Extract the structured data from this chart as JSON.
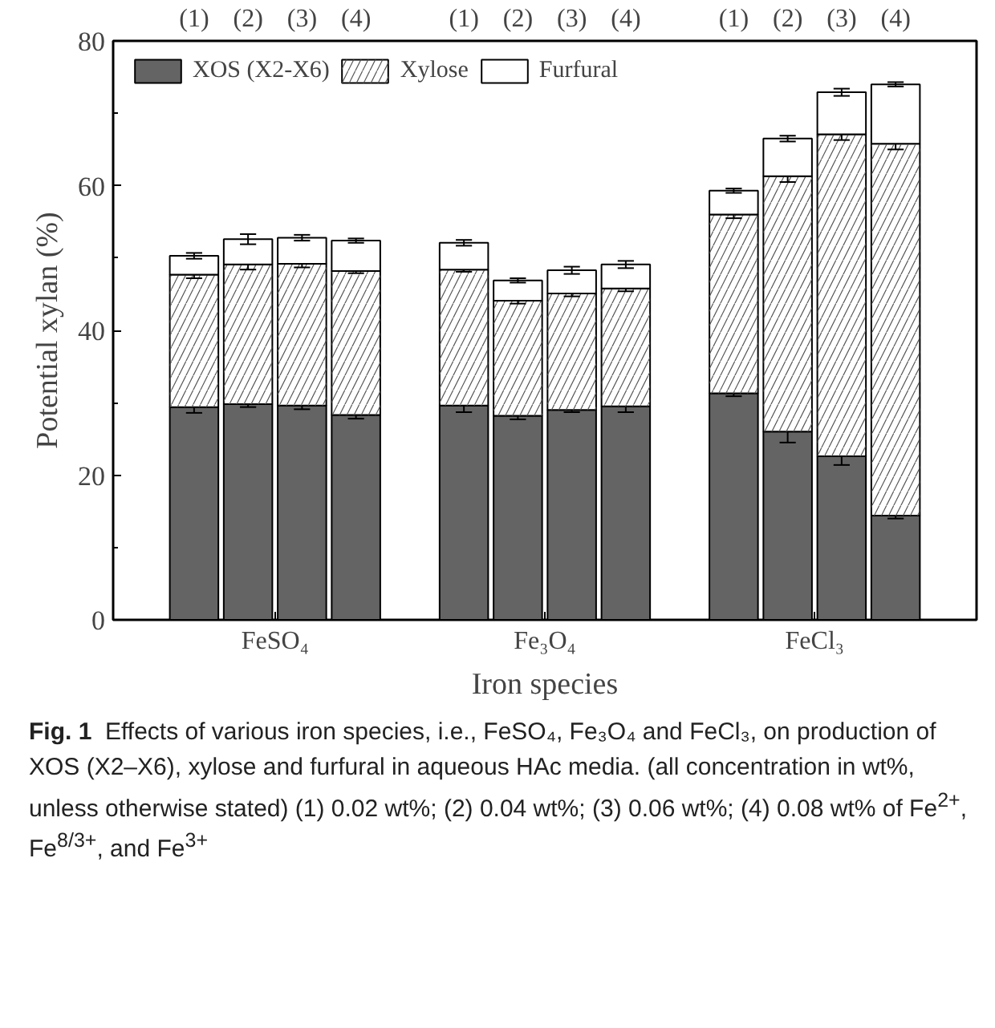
{
  "chart_data": {
    "type": "bar",
    "stacked": true,
    "categories": [
      "(1)",
      "(2)",
      "(3)",
      "(4)",
      "(1)",
      "(2)",
      "(3)",
      "(4)",
      "(1)",
      "(2)",
      "(3)",
      "(4)"
    ],
    "xlabel": "Iron species",
    "ylabel": "Potential xylan (%)",
    "ylim": [
      0,
      80
    ],
    "yticks": [
      0,
      20,
      40,
      60,
      80
    ],
    "series": [
      {
        "name": "XOS (X2-X6)",
        "color": "#646464",
        "values": [
          29.4,
          29.8,
          29.6,
          28.3,
          29.6,
          28.2,
          29.0,
          29.5,
          31.3,
          26.0,
          22.6,
          14.4
        ],
        "errors": [
          0.8,
          0.4,
          0.5,
          0.5,
          0.9,
          0.5,
          0.3,
          0.8,
          0.4,
          1.5,
          1.2,
          0.4
        ]
      },
      {
        "name": "Xylose",
        "color": "#ffffff",
        "values": [
          18.3,
          19.3,
          19.6,
          19.9,
          18.8,
          15.9,
          16.1,
          16.3,
          24.7,
          35.3,
          44.5,
          51.4
        ],
        "errors": [
          0.5,
          0.7,
          0.5,
          0.3,
          0.3,
          0.4,
          0.4,
          0.4,
          0.5,
          0.8,
          0.8,
          0.8
        ]
      },
      {
        "name": "Furfural",
        "color": "#ffffff",
        "values": [
          2.6,
          3.5,
          3.6,
          4.2,
          3.7,
          2.8,
          3.2,
          3.3,
          3.3,
          5.2,
          5.8,
          8.2
        ],
        "errors": [
          0.4,
          0.7,
          0.4,
          0.3,
          0.4,
          0.3,
          0.5,
          0.5,
          0.3,
          0.4,
          0.5,
          0.3
        ]
      }
    ],
    "legend": "top left",
    "grid": false,
    "annotations": [
      "FeSO₄",
      "Fe₃O₄",
      "FeCl₃",
      "Fig. 1 Effects of various iron species, i.e., FeSO₄, Fe₃O₄ and FeCl₃, on production of XOS (X2–X6), xylose and furfural in aqueous HAc media. (all concentration in wt%, unless otherwise stated) (1) 0.02 wt%; (2) 0.04 wt%; (3) 0.06 wt%; (4) 0.08 wt% of Fe$^{2+}$, Fe$^{8/3+}$, and Fe$^{3+}$"
    ]
  }
}
